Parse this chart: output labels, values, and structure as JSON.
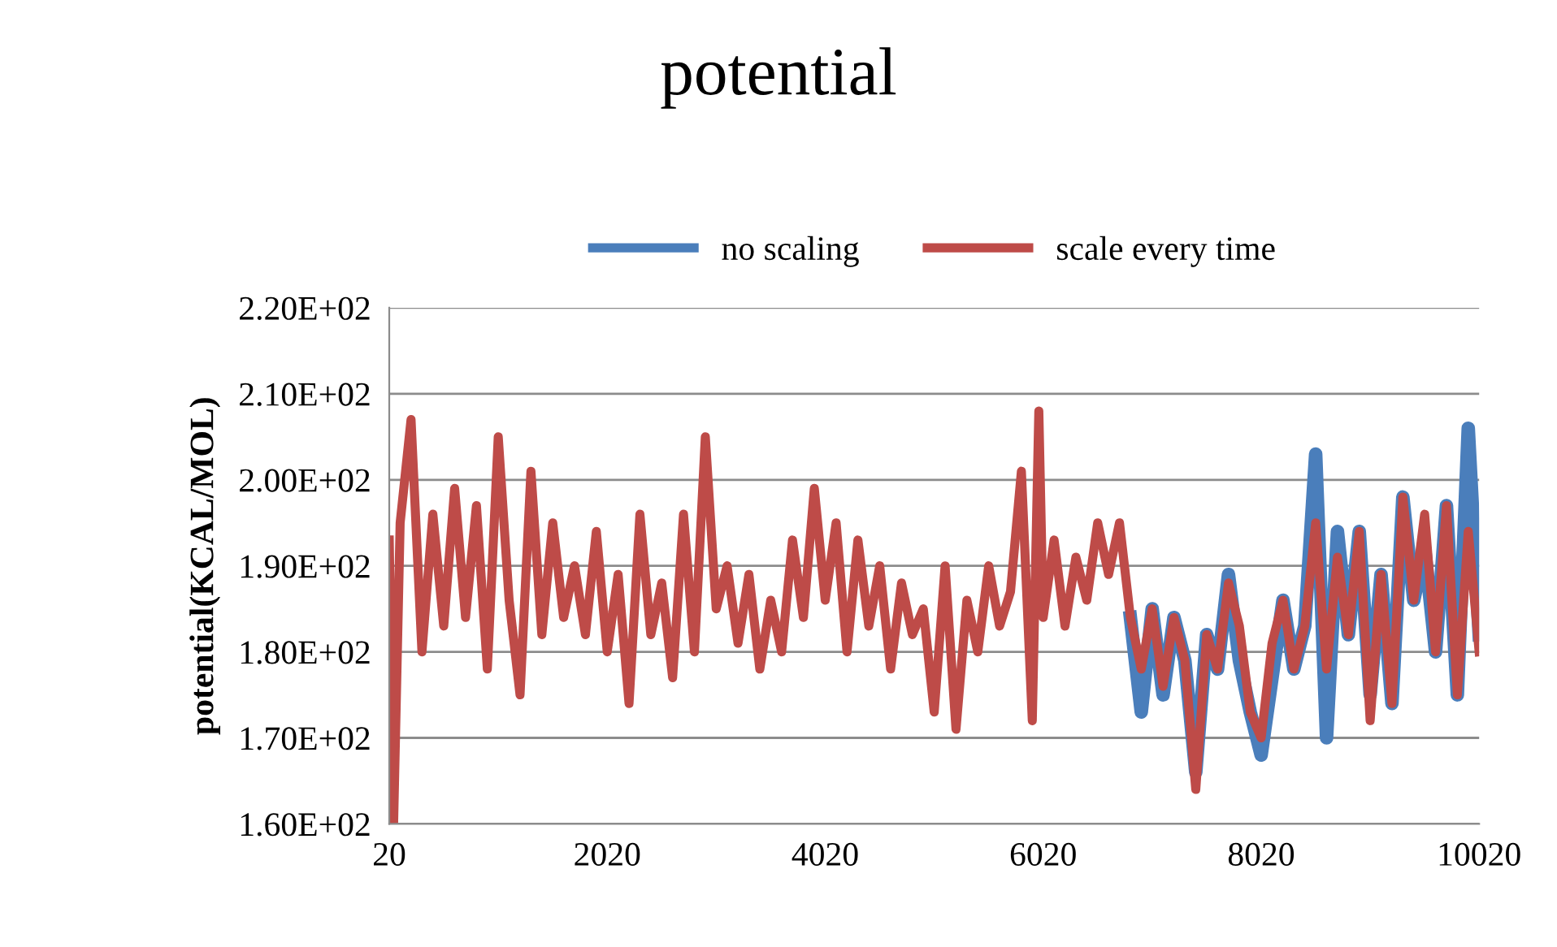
{
  "chart_data": {
    "type": "line",
    "title": "potential",
    "ylabel": "potential(KCAL/MOL)",
    "x": [
      20,
      60,
      120,
      220,
      320,
      420,
      520,
      620,
      720,
      820,
      920,
      1020,
      1120,
      1220,
      1320,
      1420,
      1520,
      1620,
      1720,
      1820,
      1920,
      2020,
      2120,
      2220,
      2320,
      2420,
      2520,
      2620,
      2720,
      2820,
      2920,
      3020,
      3120,
      3220,
      3320,
      3420,
      3520,
      3620,
      3720,
      3820,
      3920,
      4020,
      4120,
      4220,
      4320,
      4420,
      4520,
      4620,
      4720,
      4820,
      4920,
      5020,
      5120,
      5220,
      5320,
      5420,
      5520,
      5620,
      5720,
      5820,
      5920,
      5980,
      6020,
      6120,
      6220,
      6320,
      6420,
      6520,
      6620,
      6720,
      6820,
      6920,
      7020,
      7120,
      7220,
      7320,
      7420,
      7520,
      7620,
      7720,
      7820,
      7920,
      8020,
      8120,
      8220,
      8320,
      8420,
      8520,
      8620,
      8720,
      8820,
      8920,
      9020,
      9120,
      9220,
      9320,
      9420,
      9520,
      9620,
      9720,
      9820,
      9920,
      10020
    ],
    "series": [
      {
        "name": "no scaling",
        "color": "#4a7ebb",
        "values": [
          null,
          null,
          null,
          null,
          null,
          null,
          null,
          null,
          null,
          null,
          null,
          null,
          null,
          null,
          null,
          null,
          null,
          null,
          null,
          null,
          null,
          null,
          null,
          null,
          null,
          null,
          null,
          null,
          null,
          null,
          null,
          null,
          null,
          null,
          null,
          null,
          null,
          null,
          null,
          null,
          null,
          null,
          null,
          null,
          null,
          null,
          null,
          null,
          null,
          null,
          null,
          null,
          null,
          null,
          null,
          null,
          null,
          null,
          null,
          null,
          null,
          null,
          null,
          null,
          null,
          null,
          null,
          null,
          null,
          null,
          184,
          173,
          185,
          175,
          184,
          179,
          166,
          182,
          178,
          189,
          179,
          173,
          168,
          177,
          186,
          178,
          183,
          203,
          170,
          194,
          182,
          194,
          175,
          189,
          174,
          198,
          186,
          192,
          180,
          197,
          175,
          206,
          182
        ]
      },
      {
        "name": "scale every time",
        "color": "#be4b48",
        "values": [
          193,
          160,
          195,
          207,
          180,
          196,
          183,
          199,
          184,
          197,
          178,
          205,
          186,
          175,
          201,
          182,
          195,
          184,
          190,
          182,
          194,
          180,
          189,
          174,
          196,
          182,
          188,
          177,
          196,
          180,
          205,
          185,
          190,
          181,
          189,
          178,
          186,
          180,
          193,
          184,
          199,
          186,
          195,
          180,
          193,
          183,
          190,
          178,
          188,
          182,
          185,
          173,
          190,
          171,
          186,
          180,
          190,
          183,
          187,
          201,
          172,
          208,
          184,
          193,
          183,
          191,
          186,
          195,
          189,
          195,
          184,
          178,
          185,
          176,
          184,
          179,
          164,
          182,
          178,
          188,
          183,
          173,
          170,
          181,
          186,
          178,
          183,
          195,
          178,
          191,
          182,
          194,
          172,
          189,
          174,
          198,
          186,
          196,
          180,
          197,
          175,
          194,
          180
        ]
      }
    ],
    "xlim": [
      20,
      10020
    ],
    "xticks": [
      20,
      2020,
      4020,
      6020,
      8020,
      10020
    ],
    "ylim": [
      160,
      220
    ],
    "yticks": [
      {
        "value": 160,
        "label": "1.60E+02"
      },
      {
        "value": 170,
        "label": "1.70E+02"
      },
      {
        "value": 180,
        "label": "1.80E+02"
      },
      {
        "value": 190,
        "label": "1.90E+02"
      },
      {
        "value": 200,
        "label": "2.00E+02"
      },
      {
        "value": 210,
        "label": "2.10E+02"
      },
      {
        "value": 220,
        "label": "2.20E+02"
      }
    ],
    "grid": "y",
    "legend": "top",
    "marker": "none",
    "line_style": "solid"
  }
}
